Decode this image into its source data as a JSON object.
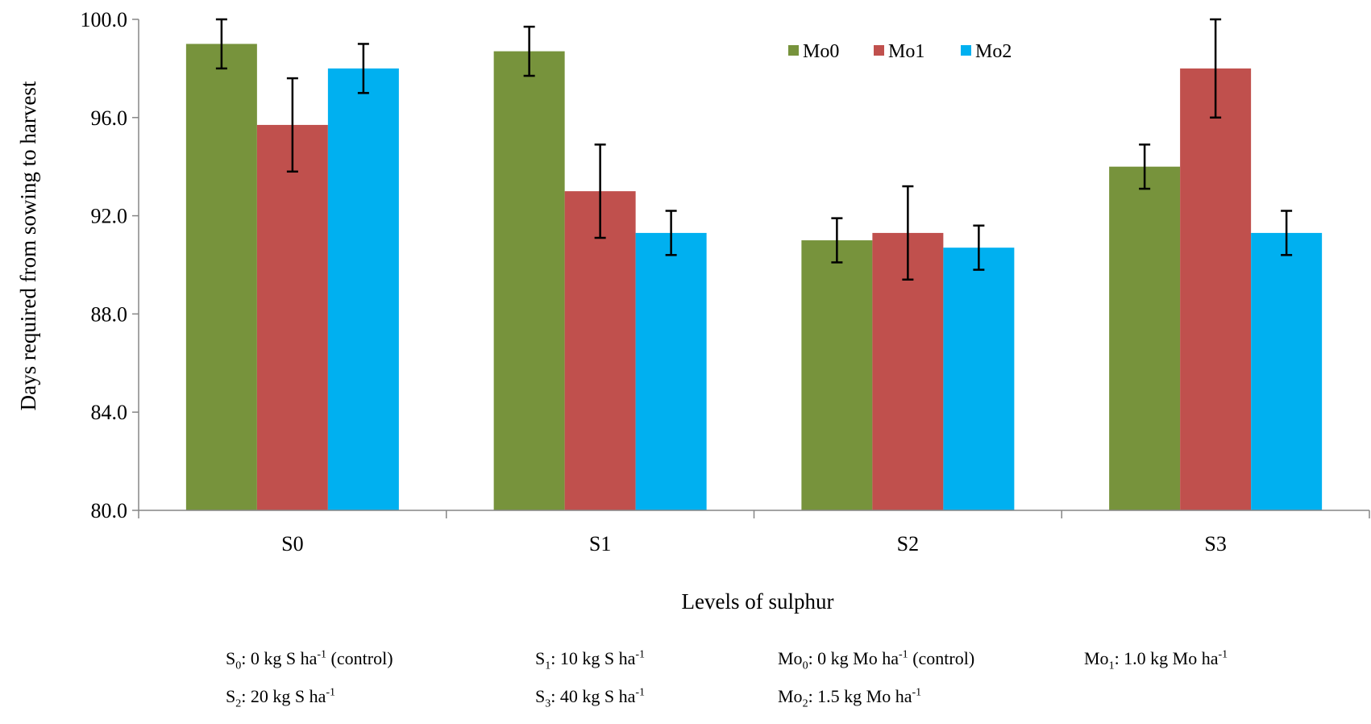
{
  "chart_data": {
    "type": "bar",
    "categories": [
      "S0",
      "S1",
      "S2",
      "S3"
    ],
    "series": [
      {
        "name": "Mo0",
        "color": "#77933C",
        "values": [
          99.0,
          98.7,
          91.0,
          94.0
        ],
        "errors": [
          1.0,
          1.0,
          0.9,
          0.9
        ]
      },
      {
        "name": "Mo1",
        "color": "#C0504D",
        "values": [
          95.7,
          93.0,
          91.3,
          98.0
        ],
        "errors": [
          1.9,
          1.9,
          1.9,
          2.0
        ]
      },
      {
        "name": "Mo2",
        "color": "#00B0F0",
        "values": [
          98.0,
          91.3,
          90.7,
          91.3
        ],
        "errors": [
          1.0,
          0.9,
          0.9,
          0.9
        ]
      }
    ],
    "xlabel": "Levels of  sulphur",
    "ylabel": "Days required from sowing to harvest",
    "ylim": [
      80.0,
      100.0
    ],
    "yticks": [
      "80.0",
      "84.0",
      "88.0",
      "92.0",
      "96.0",
      "100.0"
    ],
    "grid": false,
    "legend_position": "top-right"
  },
  "notes": [
    {
      "base": "S",
      "sub": "0",
      "mid": ": 0 kg S ha",
      "sup": "-1",
      "tail": " (control)"
    },
    {
      "base": "S",
      "sub": "1",
      "mid": ": 10 kg S ha",
      "sup": "-1",
      "tail": ""
    },
    {
      "base": "Mo",
      "sub": "0",
      "mid": ": 0 kg Mo ha",
      "sup": "-1",
      "tail": " (control)"
    },
    {
      "base": "Mo",
      "sub": "1",
      "mid": ": 1.0 kg  Mo ha",
      "sup": "-1",
      "tail": ""
    },
    {
      "base": "S",
      "sub": "2",
      "mid": ": 20 kg S ha",
      "sup": "-1",
      "tail": ""
    },
    {
      "base": "S",
      "sub": "3",
      "mid": ": 40 kg S ha",
      "sup": "-1",
      "tail": ""
    },
    {
      "base": "Mo",
      "sub": "2",
      "mid": ": 1.5 kg Mo ha",
      "sup": "-1",
      "tail": ""
    }
  ]
}
